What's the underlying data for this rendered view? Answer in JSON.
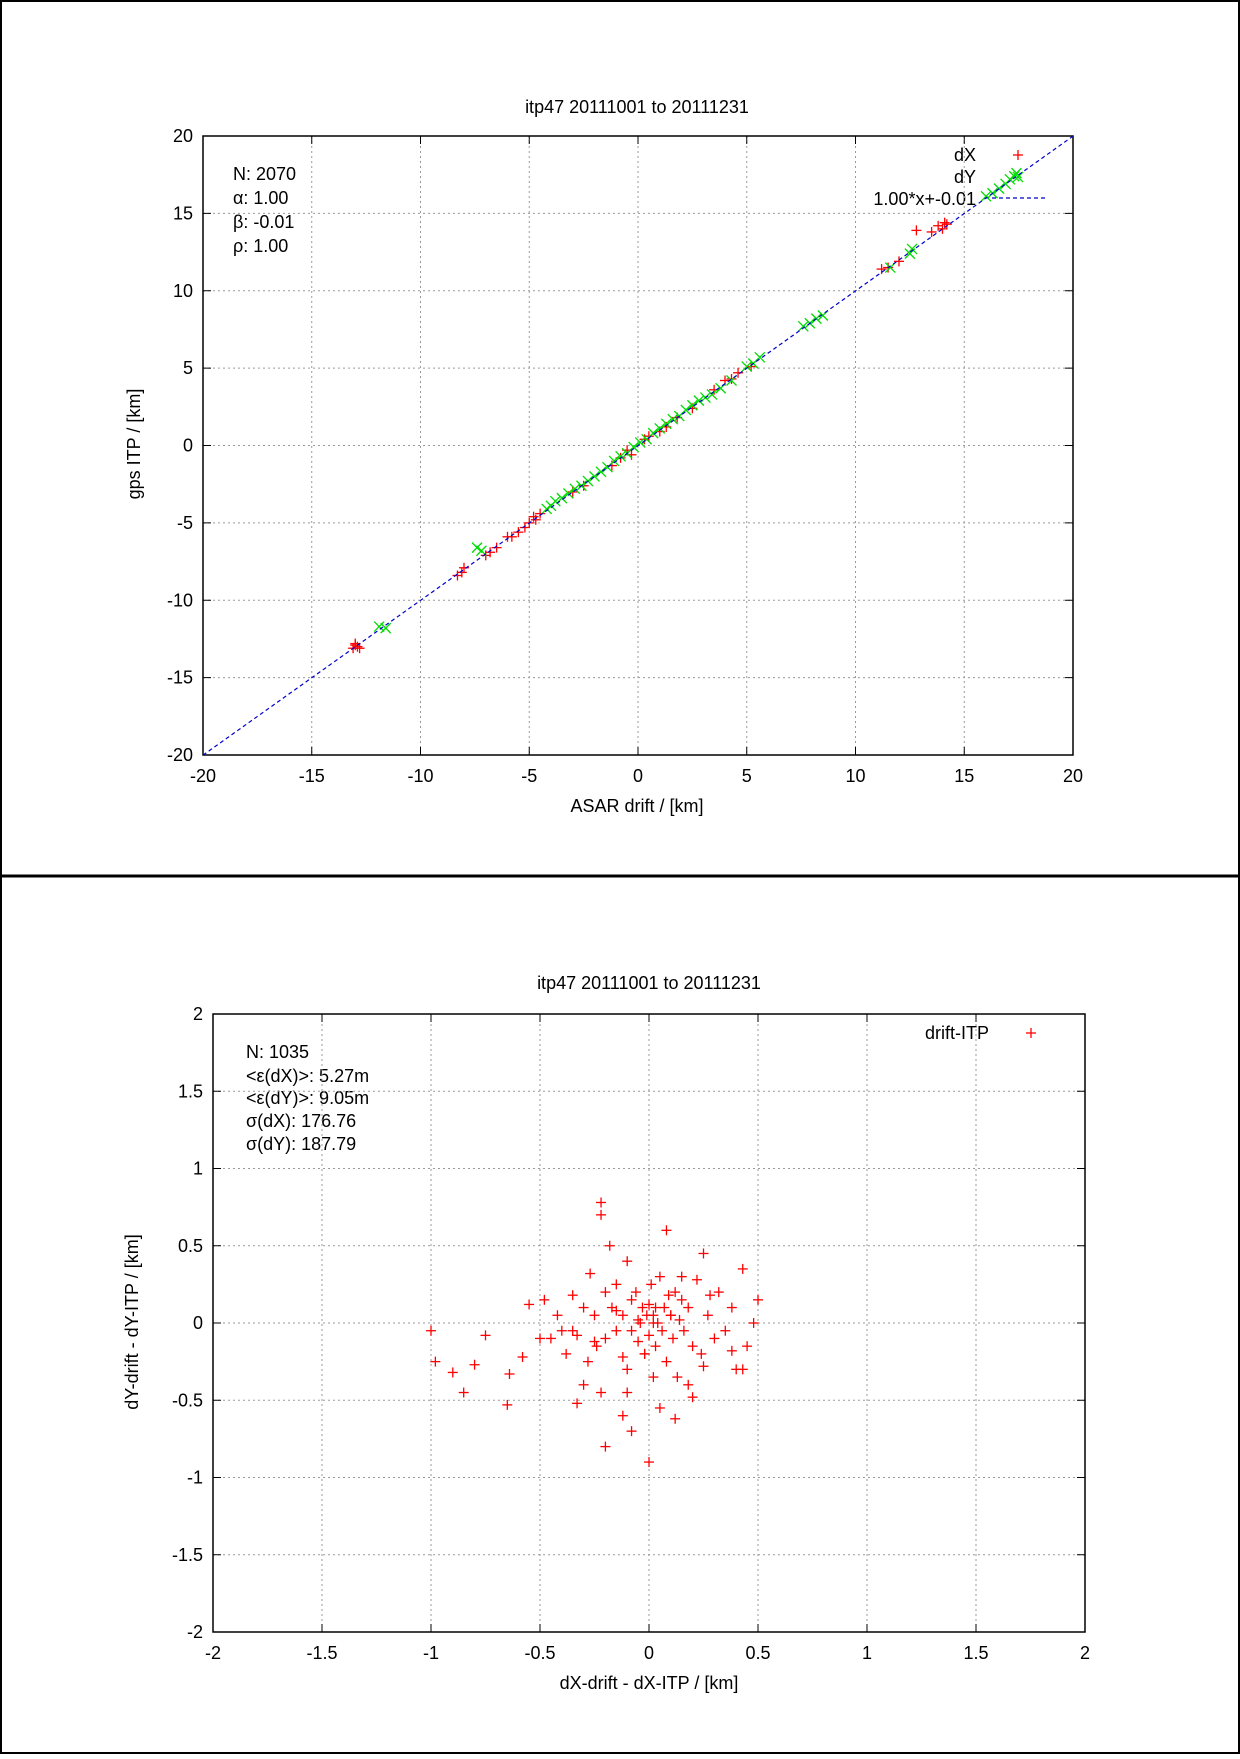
{
  "chart_data": [
    {
      "type": "scatter",
      "title": "itp47 20111001 to 20111231",
      "xlabel": "ASAR drift / [km]",
      "ylabel": "gps ITP / [km]",
      "xlim": [
        -20,
        20
      ],
      "ylim": [
        -20,
        20
      ],
      "xticks": [
        "-20",
        "-15",
        "-10",
        "-5",
        "0",
        "5",
        "10",
        "15",
        "20"
      ],
      "yticks": [
        "-20",
        "-15",
        "-10",
        "-5",
        "0",
        "5",
        "10",
        "15",
        "20"
      ],
      "grid": true,
      "legend_position": "top-right",
      "stats": [
        "N: 2070",
        "α: 1.00",
        "β: -0.01",
        "ρ: 1.00"
      ],
      "series": [
        {
          "name": "dX",
          "marker": "+",
          "color": "#ff0000",
          "x": [
            -13.1,
            -13.0,
            -12.9,
            -13.0,
            -12.8,
            -8.3,
            -8.1,
            -8.0,
            -7.0,
            -6.8,
            -6.5,
            -6.0,
            -5.8,
            -5.5,
            -5.2,
            -5.0,
            -4.8,
            -4.7,
            -4.5,
            -3.0,
            -2.5,
            -1.2,
            -0.8,
            -0.5,
            -0.3,
            0.3,
            0.5,
            1.0,
            1.3,
            1.8,
            2.5,
            3.5,
            4.0,
            4.3,
            4.6,
            5.2,
            11.2,
            11.5,
            12.0,
            12.8,
            13.5,
            13.8,
            14.0,
            14.2,
            14.1
          ],
          "y": [
            -13.1,
            -12.9,
            -13.0,
            -12.8,
            -13.1,
            -8.4,
            -8.2,
            -7.9,
            -7.1,
            -6.9,
            -6.6,
            -5.9,
            -5.9,
            -5.6,
            -5.3,
            -5.0,
            -4.6,
            -4.8,
            -4.4,
            -3.0,
            -2.6,
            -1.3,
            -0.8,
            -0.3,
            -0.6,
            0.4,
            0.6,
            0.9,
            1.2,
            1.8,
            2.4,
            3.6,
            4.2,
            4.3,
            4.7,
            5.1,
            11.4,
            11.5,
            11.9,
            13.9,
            13.8,
            14.2,
            14.0,
            14.3,
            14.4
          ]
        },
        {
          "name": "dY",
          "marker": "x",
          "color": "#00dd00",
          "x": [
            -11.9,
            -11.6,
            -7.4,
            -7.2,
            -4.2,
            -4.0,
            -3.8,
            -3.5,
            -3.2,
            -2.9,
            -2.6,
            -2.3,
            -2.0,
            -1.7,
            -1.4,
            -1.1,
            -0.8,
            -0.5,
            -0.2,
            0.1,
            0.4,
            0.7,
            1.0,
            1.3,
            1.6,
            1.9,
            2.2,
            2.5,
            2.8,
            3.1,
            3.4,
            3.8,
            4.3,
            5.0,
            5.3,
            5.6,
            7.6,
            7.9,
            8.2,
            8.5,
            11.6,
            12.5,
            12.6,
            16.0,
            16.3,
            16.6,
            16.9,
            17.1,
            17.3,
            17.4
          ],
          "y": [
            -11.7,
            -11.8,
            -6.6,
            -6.8,
            -4.1,
            -3.9,
            -3.6,
            -3.4,
            -3.1,
            -2.8,
            -2.6,
            -2.3,
            -2.0,
            -1.7,
            -1.4,
            -1.0,
            -0.7,
            -0.5,
            -0.1,
            0.2,
            0.4,
            0.8,
            1.1,
            1.4,
            1.7,
            1.9,
            2.3,
            2.6,
            2.9,
            3.1,
            3.3,
            3.7,
            4.2,
            5.1,
            5.3,
            5.7,
            7.7,
            7.9,
            8.2,
            8.4,
            11.5,
            12.4,
            12.7,
            16.1,
            16.3,
            16.6,
            16.9,
            17.2,
            17.4,
            17.6
          ]
        },
        {
          "name": "1.00*x+-0.01",
          "type": "line",
          "color": "#0000cc",
          "slope": 1.0,
          "intercept": -0.01
        }
      ]
    },
    {
      "type": "scatter",
      "title": "itp47 20111001 to 20111231",
      "xlabel": "dX-drift - dX-ITP / [km]",
      "ylabel": "dY-drift - dY-ITP / [km]",
      "xlim": [
        -2,
        2
      ],
      "ylim": [
        -2,
        2
      ],
      "xticks": [
        "-2",
        "-1.5",
        "-1",
        "-0.5",
        "0",
        "0.5",
        "1",
        "1.5",
        "2"
      ],
      "yticks": [
        "-2",
        "-1.5",
        "-1",
        "-0.5",
        "0",
        "0.5",
        "1",
        "1.5",
        "2"
      ],
      "grid": true,
      "legend_position": "top-right",
      "stats": [
        "N: 1035",
        "<ε(dX)>:  5.27m",
        "<ε(dY)>: 9.05m",
        "σ(dX):  176.76",
        "σ(dY):  187.79"
      ],
      "series": [
        {
          "name": "drift-ITP",
          "marker": "+",
          "color": "#ff0000",
          "x": [
            -1.0,
            -0.98,
            -0.9,
            -0.85,
            -0.8,
            -0.75,
            -0.65,
            -0.64,
            -0.58,
            -0.55,
            -0.5,
            -0.48,
            -0.45,
            -0.42,
            -0.4,
            -0.38,
            -0.35,
            -0.33,
            -0.3,
            -0.3,
            -0.28,
            -0.27,
            -0.25,
            -0.24,
            -0.22,
            -0.22,
            -0.2,
            -0.2,
            -0.18,
            -0.17,
            -0.15,
            -0.15,
            -0.12,
            -0.12,
            -0.1,
            -0.1,
            -0.08,
            -0.08,
            -0.06,
            -0.05,
            -0.04,
            -0.03,
            -0.02,
            -0.01,
            0.0,
            0.0,
            0.01,
            0.02,
            0.03,
            0.04,
            0.05,
            0.06,
            0.07,
            0.08,
            0.09,
            0.1,
            0.11,
            0.12,
            0.13,
            0.14,
            0.15,
            0.16,
            0.18,
            0.2,
            0.22,
            0.24,
            0.25,
            0.27,
            0.3,
            0.32,
            0.35,
            0.38,
            0.4,
            0.43,
            0.45,
            0.48,
            0.5,
            -0.1,
            0.05,
            0.12,
            -0.05,
            0.02,
            -0.15,
            0.2,
            0.28,
            -0.25,
            -0.35,
            0.15,
            -0.02,
            0.0,
            0.08,
            -0.08,
            0.03,
            -0.12,
            0.18,
            0.1,
            -0.2,
            -0.22,
            -0.33,
            0.02,
            0.25,
            0.38,
            0.43
          ],
          "y": [
            -0.05,
            -0.25,
            -0.32,
            -0.45,
            -0.27,
            -0.08,
            -0.53,
            -0.33,
            -0.22,
            0.12,
            -0.1,
            0.15,
            -0.1,
            0.05,
            -0.05,
            -0.2,
            0.18,
            -0.08,
            0.1,
            -0.4,
            -0.25,
            0.32,
            0.05,
            -0.15,
            0.7,
            -0.45,
            0.2,
            -0.1,
            0.5,
            0.1,
            -0.05,
            0.25,
            -0.22,
            0.05,
            0.4,
            -0.3,
            -0.05,
            0.15,
            0.2,
            -0.12,
            0.0,
            0.1,
            -0.2,
            0.05,
            0.12,
            -0.08,
            0.25,
            0.05,
            -0.15,
            0.0,
            0.3,
            -0.05,
            0.1,
            -0.25,
            0.18,
            0.05,
            -0.1,
            0.2,
            -0.35,
            0.02,
            0.3,
            -0.05,
            0.1,
            -0.15,
            0.28,
            -0.2,
            0.45,
            0.05,
            -0.1,
            0.2,
            -0.05,
            0.1,
            -0.3,
            0.35,
            -0.15,
            0.0,
            0.15,
            -0.45,
            -0.55,
            -0.62,
            0.02,
            -0.35,
            0.08,
            -0.48,
            0.18,
            -0.12,
            -0.05,
            0.15,
            -0.2,
            -0.9,
            0.6,
            -0.7,
            0.1,
            -0.6,
            -0.4,
            0.05,
            -0.8,
            0.78,
            -0.52,
            0.0,
            -0.28,
            -0.18,
            -0.3
          ]
        }
      ]
    }
  ]
}
